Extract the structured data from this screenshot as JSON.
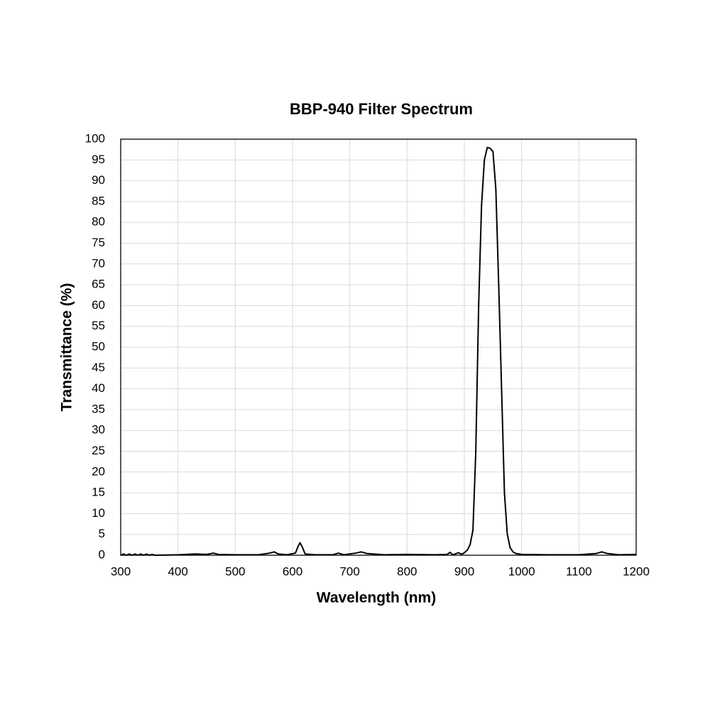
{
  "chart_data": {
    "type": "line",
    "title": "BBP-940 Filter Spectrum",
    "x_label": "Wavelength (nm)",
    "y_label": "Transmittance (%)",
    "x": [
      300,
      305,
      310,
      315,
      320,
      325,
      330,
      335,
      340,
      345,
      350,
      355,
      360,
      400,
      430,
      450,
      462,
      470,
      500,
      540,
      560,
      568,
      575,
      590,
      605,
      610,
      613,
      617,
      622,
      640,
      670,
      680,
      690,
      710,
      720,
      730,
      760,
      800,
      850,
      870,
      875,
      880,
      890,
      895,
      900,
      905,
      910,
      915,
      920,
      925,
      930,
      935,
      940,
      945,
      950,
      955,
      960,
      965,
      970,
      975,
      980,
      985,
      990,
      1000,
      1050,
      1100,
      1130,
      1140,
      1150,
      1170,
      1200
    ],
    "series": [
      {
        "color": "#000000",
        "values": [
          0,
          0.3,
          0,
          0.3,
          0,
          0.3,
          0,
          0.3,
          0,
          0.3,
          0,
          0.2,
          0,
          0.1,
          0.3,
          0.2,
          0.5,
          0.2,
          0.1,
          0.1,
          0.5,
          0.8,
          0.3,
          0.1,
          0.5,
          2.2,
          3,
          2,
          0.3,
          0.1,
          0.1,
          0.5,
          0.1,
          0.5,
          0.8,
          0.4,
          0.1,
          0.2,
          0.1,
          0.2,
          0.7,
          0.1,
          0.6,
          0.2,
          0.6,
          1.2,
          2.5,
          6,
          25,
          60,
          84,
          95,
          98,
          97.8,
          97,
          88,
          65,
          40,
          15,
          5,
          1.8,
          0.8,
          0.4,
          0.2,
          0.1,
          0.1,
          0.4,
          0.8,
          0.4,
          0.1,
          0.2
        ]
      }
    ],
    "xlim": [
      300,
      1200
    ],
    "xticks": [
      300,
      400,
      500,
      600,
      700,
      800,
      900,
      1000,
      1100,
      1200
    ],
    "ylim": [
      0,
      100
    ],
    "yticks": [
      0,
      5,
      10,
      15,
      20,
      25,
      30,
      35,
      40,
      45,
      50,
      55,
      60,
      65,
      70,
      75,
      80,
      85,
      90,
      95,
      100
    ],
    "grid": true
  }
}
